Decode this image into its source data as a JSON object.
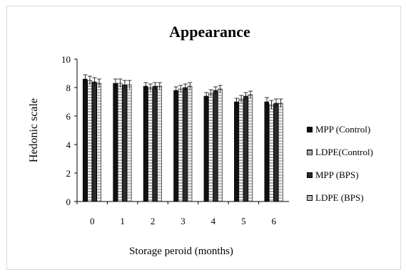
{
  "chart_data": {
    "type": "bar",
    "title": "Appearance",
    "xlabel": "Storage peroid (months)",
    "ylabel": "Hedonic scale",
    "ylim": [
      0,
      10
    ],
    "yticks": [
      0,
      2,
      4,
      6,
      8,
      10
    ],
    "grid": false,
    "legend_position": "right",
    "categories": [
      "0",
      "1",
      "2",
      "3",
      "4",
      "5",
      "6"
    ],
    "series": [
      {
        "name": "MPP (Control)",
        "values": [
          8.6,
          8.3,
          8.1,
          7.8,
          7.4,
          7.0,
          7.0
        ],
        "error": [
          0.3,
          0.3,
          0.25,
          0.25,
          0.25,
          0.25,
          0.3
        ]
      },
      {
        "name": "LDPE(Control)",
        "values": [
          8.5,
          8.3,
          8.0,
          7.9,
          7.6,
          7.2,
          6.8
        ],
        "error": [
          0.3,
          0.3,
          0.25,
          0.25,
          0.25,
          0.25,
          0.3
        ]
      },
      {
        "name": "MPP (BPS)",
        "values": [
          8.4,
          8.2,
          8.1,
          8.0,
          7.8,
          7.4,
          6.9
        ],
        "error": [
          0.3,
          0.3,
          0.25,
          0.25,
          0.25,
          0.25,
          0.3
        ]
      },
      {
        "name": "LDPE (BPS)",
        "values": [
          8.3,
          8.2,
          8.1,
          8.1,
          7.9,
          7.5,
          6.9
        ],
        "error": [
          0.3,
          0.3,
          0.25,
          0.25,
          0.25,
          0.25,
          0.3
        ]
      }
    ]
  }
}
